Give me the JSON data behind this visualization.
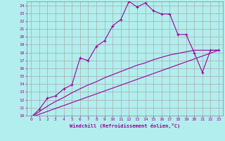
{
  "xlabel": "Windchill (Refroidissement éolien,°C)",
  "xlim": [
    -0.5,
    23.5
  ],
  "ylim": [
    10,
    24.5
  ],
  "xticks": [
    0,
    1,
    2,
    3,
    4,
    5,
    6,
    7,
    8,
    9,
    10,
    11,
    12,
    13,
    14,
    15,
    16,
    17,
    18,
    19,
    20,
    21,
    22,
    23
  ],
  "yticks": [
    10,
    11,
    12,
    13,
    14,
    15,
    16,
    17,
    18,
    19,
    20,
    21,
    22,
    23,
    24
  ],
  "bg_color": "#b2eeee",
  "line_color": "#990099",
  "grid_color": "#aaaaaa",
  "line1_x": [
    0,
    1,
    2,
    3,
    4,
    5,
    6,
    7,
    8,
    9,
    10,
    11,
    12,
    13,
    14,
    15,
    16,
    17,
    18,
    19,
    20,
    21,
    22,
    23
  ],
  "line1_y": [
    9.8,
    10.8,
    12.2,
    12.5,
    13.4,
    13.9,
    17.3,
    17.0,
    18.8,
    19.5,
    21.4,
    22.2,
    24.5,
    23.8,
    24.3,
    23.3,
    22.9,
    22.9,
    20.3,
    20.3,
    18.0,
    15.5,
    18.3,
    18.3
  ],
  "line2_x": [
    0,
    23
  ],
  "line2_y": [
    9.8,
    18.3
  ],
  "line3_x": [
    0,
    1,
    2,
    3,
    4,
    5,
    6,
    7,
    8,
    9,
    10,
    11,
    12,
    13,
    14,
    15,
    16,
    17,
    18,
    19,
    20,
    21,
    22,
    23
  ],
  "line3_y": [
    9.8,
    10.5,
    11.2,
    11.8,
    12.3,
    12.9,
    13.4,
    13.9,
    14.3,
    14.8,
    15.2,
    15.6,
    16.0,
    16.4,
    16.7,
    17.1,
    17.4,
    17.7,
    17.9,
    18.1,
    18.3,
    18.3,
    18.3,
    18.3
  ]
}
